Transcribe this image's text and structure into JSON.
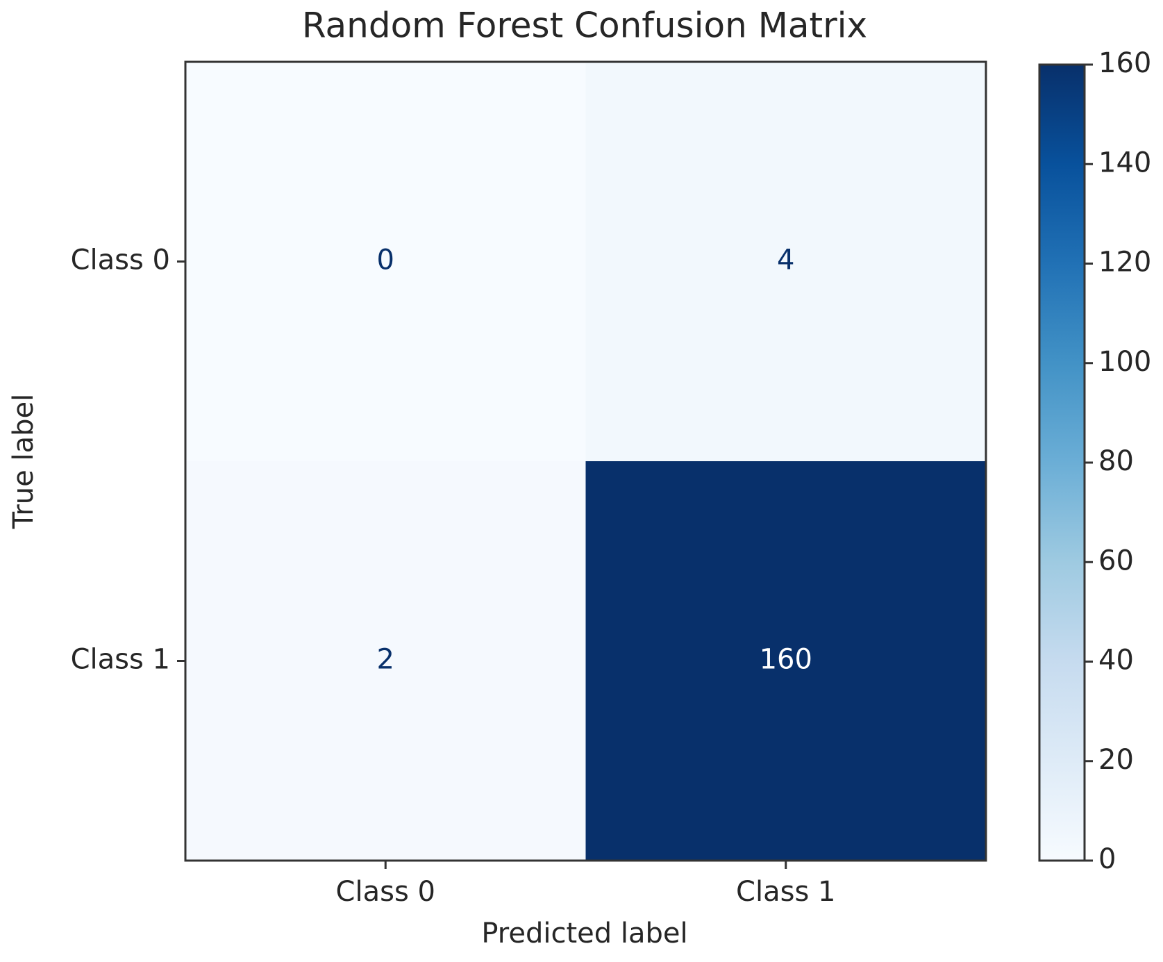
{
  "chart_data": {
    "type": "heatmap",
    "title": "Random Forest Confusion Matrix",
    "x_label": "Predicted label",
    "y_label": "True label",
    "x_categories": [
      "Class 0",
      "Class 1"
    ],
    "y_categories": [
      "Class 0",
      "Class 1"
    ],
    "values": [
      [
        0,
        4
      ],
      [
        2,
        160
      ]
    ],
    "colormap": "Blues",
    "colorbar_lim": [
      0,
      160
    ],
    "colorbar_ticks": [
      0,
      20,
      40,
      60,
      80,
      100,
      120,
      140,
      160
    ]
  }
}
